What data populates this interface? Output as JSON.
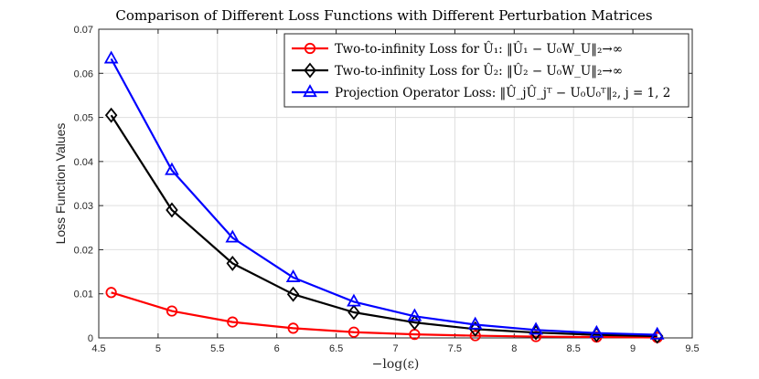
{
  "chart_data": {
    "type": "line",
    "title": "Comparison of Different Loss Functions with Different Perturbation Matrices",
    "xlabel": "−log(ε)",
    "ylabel": "Loss Function Values",
    "xlim": [
      4.5,
      9.5
    ],
    "ylim": [
      0,
      0.07
    ],
    "xticks": [
      4.5,
      5,
      5.5,
      6,
      6.5,
      7,
      7.5,
      8,
      8.5,
      9,
      9.5
    ],
    "xtick_labels": [
      "4.5",
      "5",
      "5.5",
      "6",
      "6.5",
      "7",
      "7.5",
      "8",
      "8.5",
      "9",
      "9.5"
    ],
    "yticks": [
      0,
      0.01,
      0.02,
      0.03,
      0.04,
      0.05,
      0.06,
      0.07
    ],
    "ytick_labels": [
      "0",
      "0.01",
      "0.02",
      "0.03",
      "0.04",
      "0.05",
      "0.06",
      "0.07"
    ],
    "grid": true,
    "legend_position": "top-right",
    "x": [
      4.605,
      5.116,
      5.627,
      6.138,
      6.649,
      7.161,
      7.672,
      8.183,
      8.694,
      9.205
    ],
    "series": [
      {
        "name": "Two-to-infinity Loss for Û₁: ‖Û₁ − U₀W_U‖₂→∞",
        "color": "#ff0000",
        "marker": "circle",
        "values": [
          0.0103,
          0.0061,
          0.0036,
          0.0022,
          0.0013,
          0.0008,
          0.0005,
          0.0003,
          0.0002,
          0.0001
        ]
      },
      {
        "name": "Two-to-infinity Loss for Û₂: ‖Û₂ − U₀W_U‖₂→∞",
        "color": "#000000",
        "marker": "diamond",
        "values": [
          0.0505,
          0.029,
          0.0169,
          0.0099,
          0.0058,
          0.0035,
          0.002,
          0.0012,
          0.0007,
          0.0004
        ]
      },
      {
        "name": "Projection Operator Loss: ‖Û_jÛ_jᵀ − U₀U₀ᵀ‖₂, j = 1, 2",
        "color": "#0000ff",
        "marker": "triangle",
        "values": [
          0.0633,
          0.038,
          0.0227,
          0.0137,
          0.0082,
          0.0049,
          0.003,
          0.0018,
          0.0011,
          0.0007
        ]
      }
    ]
  }
}
